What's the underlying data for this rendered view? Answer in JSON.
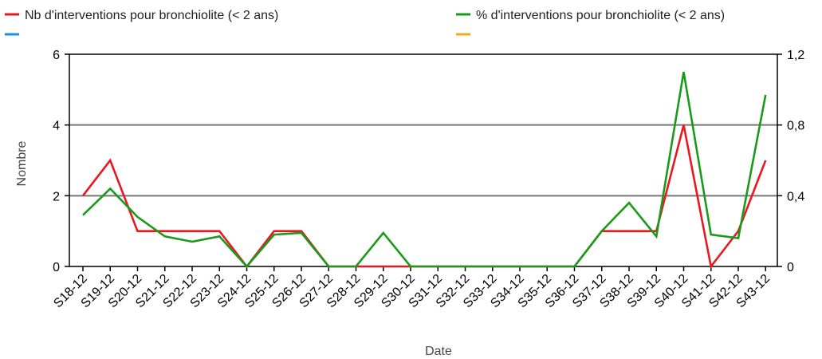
{
  "chart_data": {
    "type": "line",
    "title": "",
    "xlabel": "Date",
    "ylabel": "Nombre",
    "grid": true,
    "legend_position": "top",
    "categories": [
      "S18-12",
      "S19-12",
      "S20-12",
      "S21-12",
      "S22-12",
      "S23-12",
      "S24-12",
      "S25-12",
      "S26-12",
      "S27-12",
      "S28-12",
      "S29-12",
      "S30-12",
      "S31-12",
      "S32-12",
      "S33-12",
      "S34-12",
      "S35-12",
      "S36-12",
      "S37-12",
      "S38-12",
      "S39-12",
      "S40-12",
      "S41-12",
      "S42-12",
      "S43-12"
    ],
    "y_left": {
      "range": [
        0,
        6
      ],
      "ticks": [
        "0",
        "2",
        "4",
        "6"
      ],
      "tick_values": [
        0,
        2,
        4,
        6
      ]
    },
    "y_right": {
      "range": [
        0,
        1.2
      ],
      "ticks": [
        "0",
        "0,4",
        "0,8",
        "1,2"
      ],
      "tick_values": [
        0,
        0.4,
        0.8,
        1.2
      ]
    },
    "series": [
      {
        "name": "Nb d'interventions pour bronchiolite (< 2 ans)",
        "axis": "left",
        "color": "#e8191e",
        "values": [
          2,
          3,
          1,
          1,
          1,
          1,
          0,
          1,
          1,
          0,
          0,
          0,
          0,
          0,
          0,
          0,
          0,
          0,
          0,
          1,
          1,
          1,
          4,
          0,
          1,
          3
        ]
      },
      {
        "name": "%  d'interventions pour bronchiolite (< 2 ans)",
        "axis": "right",
        "color": "#1a9a1a",
        "values": [
          0.29,
          0.44,
          0.28,
          0.17,
          0.14,
          0.17,
          0,
          0.18,
          0.19,
          0,
          0,
          0.19,
          0,
          0,
          0,
          0,
          0,
          0,
          0,
          0.2,
          0.36,
          0.17,
          1.1,
          0.18,
          0.16,
          0.97
        ]
      }
    ],
    "legend_extra": [
      {
        "color": "#1c8fe3",
        "label": ""
      },
      {
        "color": "#f2a81a",
        "label": ""
      }
    ]
  }
}
